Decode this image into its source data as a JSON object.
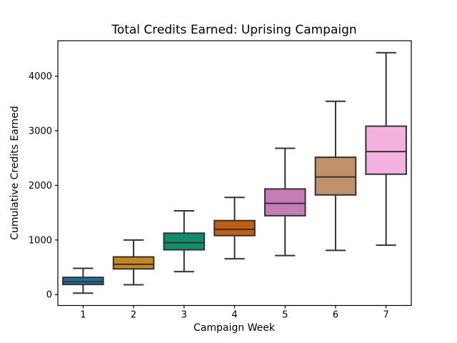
{
  "chart_data": {
    "type": "box",
    "title": "Total Credits Earned: Uprising Campaign",
    "xlabel": "Campaign Week",
    "ylabel": "Cumulative Credits Earned",
    "categories": [
      "1",
      "2",
      "3",
      "4",
      "5",
      "6",
      "7"
    ],
    "series": [
      {
        "week": "1",
        "whisker_low": 25,
        "q1": 185,
        "median": 235,
        "q3": 315,
        "whisker_high": 480,
        "color": "#1b71a5"
      },
      {
        "week": "2",
        "whisker_low": 180,
        "q1": 470,
        "median": 555,
        "q3": 690,
        "whisker_high": 1000,
        "color": "#c68720"
      },
      {
        "week": "3",
        "whisker_low": 420,
        "q1": 820,
        "median": 950,
        "q3": 1125,
        "whisker_high": 1535,
        "color": "#128d6b"
      },
      {
        "week": "4",
        "whisker_low": 655,
        "q1": 1080,
        "median": 1195,
        "q3": 1355,
        "whisker_high": 1780,
        "color": "#c15e14"
      },
      {
        "week": "5",
        "whisker_low": 715,
        "q1": 1445,
        "median": 1670,
        "q3": 1935,
        "whisker_high": 2680,
        "color": "#c57db8"
      },
      {
        "week": "6",
        "whisker_low": 810,
        "q1": 1825,
        "median": 2155,
        "q3": 2515,
        "whisker_high": 3540,
        "color": "#c19269"
      },
      {
        "week": "7",
        "whisker_low": 905,
        "q1": 2205,
        "median": 2620,
        "q3": 3085,
        "whisker_high": 4430,
        "color": "#f3b2e0"
      }
    ],
    "yticks": [
      0,
      1000,
      2000,
      3000,
      4000
    ],
    "ylim": [
      -200,
      4650
    ],
    "xlim": [
      0.5,
      7.5
    ],
    "box_width_units": 0.8,
    "cap_width_units": 0.4,
    "grid": false,
    "legend": null,
    "edge_color": "#333333",
    "frame_color": "#000000",
    "background": "#ffffff"
  }
}
